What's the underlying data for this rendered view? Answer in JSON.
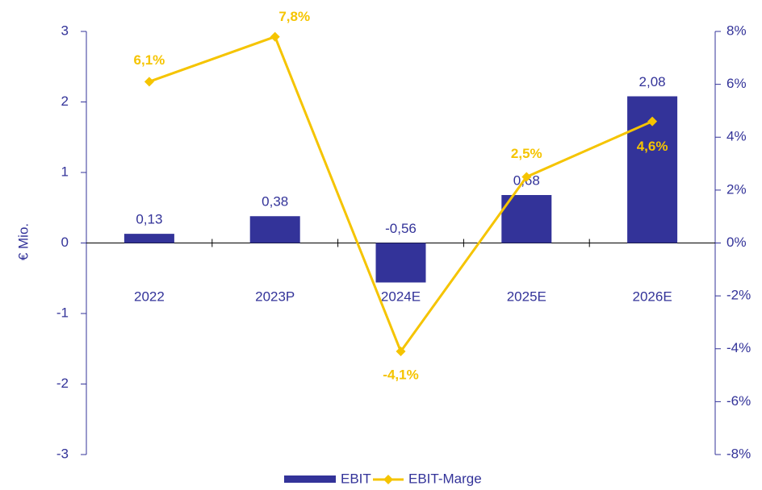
{
  "chart_data": {
    "type": "bar",
    "y_label": "€ Mio.",
    "categories": [
      "2022",
      "2023P",
      "2024E",
      "2025E",
      "2026E"
    ],
    "series": [
      {
        "name": "EBIT",
        "type": "bar",
        "color": "#333399",
        "values": [
          0.13,
          0.38,
          -0.56,
          0.68,
          2.08
        ],
        "value_labels": [
          "0,13",
          "0,38",
          "-0,56",
          "0,68",
          "2,08"
        ]
      },
      {
        "name": "EBIT-Marge",
        "type": "line",
        "axis": "y2",
        "color": "#f5c400",
        "values": [
          6.1,
          7.8,
          -4.1,
          2.5,
          4.6
        ],
        "value_labels": [
          "6,1%",
          "7,8%",
          "-4,1%",
          "2,5%",
          "4,6%"
        ]
      }
    ],
    "ylim": [
      -3,
      3
    ],
    "yticks": [
      -3,
      -2,
      -1,
      0,
      1,
      2,
      3
    ],
    "y2lim": [
      -8,
      8
    ],
    "y2ticks": [
      {
        "value": -8,
        "label": "-8%"
      },
      {
        "value": -6,
        "label": "-6%"
      },
      {
        "value": -4,
        "label": "-4%"
      },
      {
        "value": -2,
        "label": "-2%"
      },
      {
        "value": 0,
        "label": "0%"
      },
      {
        "value": 2,
        "label": "2%"
      },
      {
        "value": 4,
        "label": "4%"
      },
      {
        "value": 6,
        "label": "6%"
      },
      {
        "value": 8,
        "label": "8%"
      }
    ],
    "legend": "bottom"
  }
}
